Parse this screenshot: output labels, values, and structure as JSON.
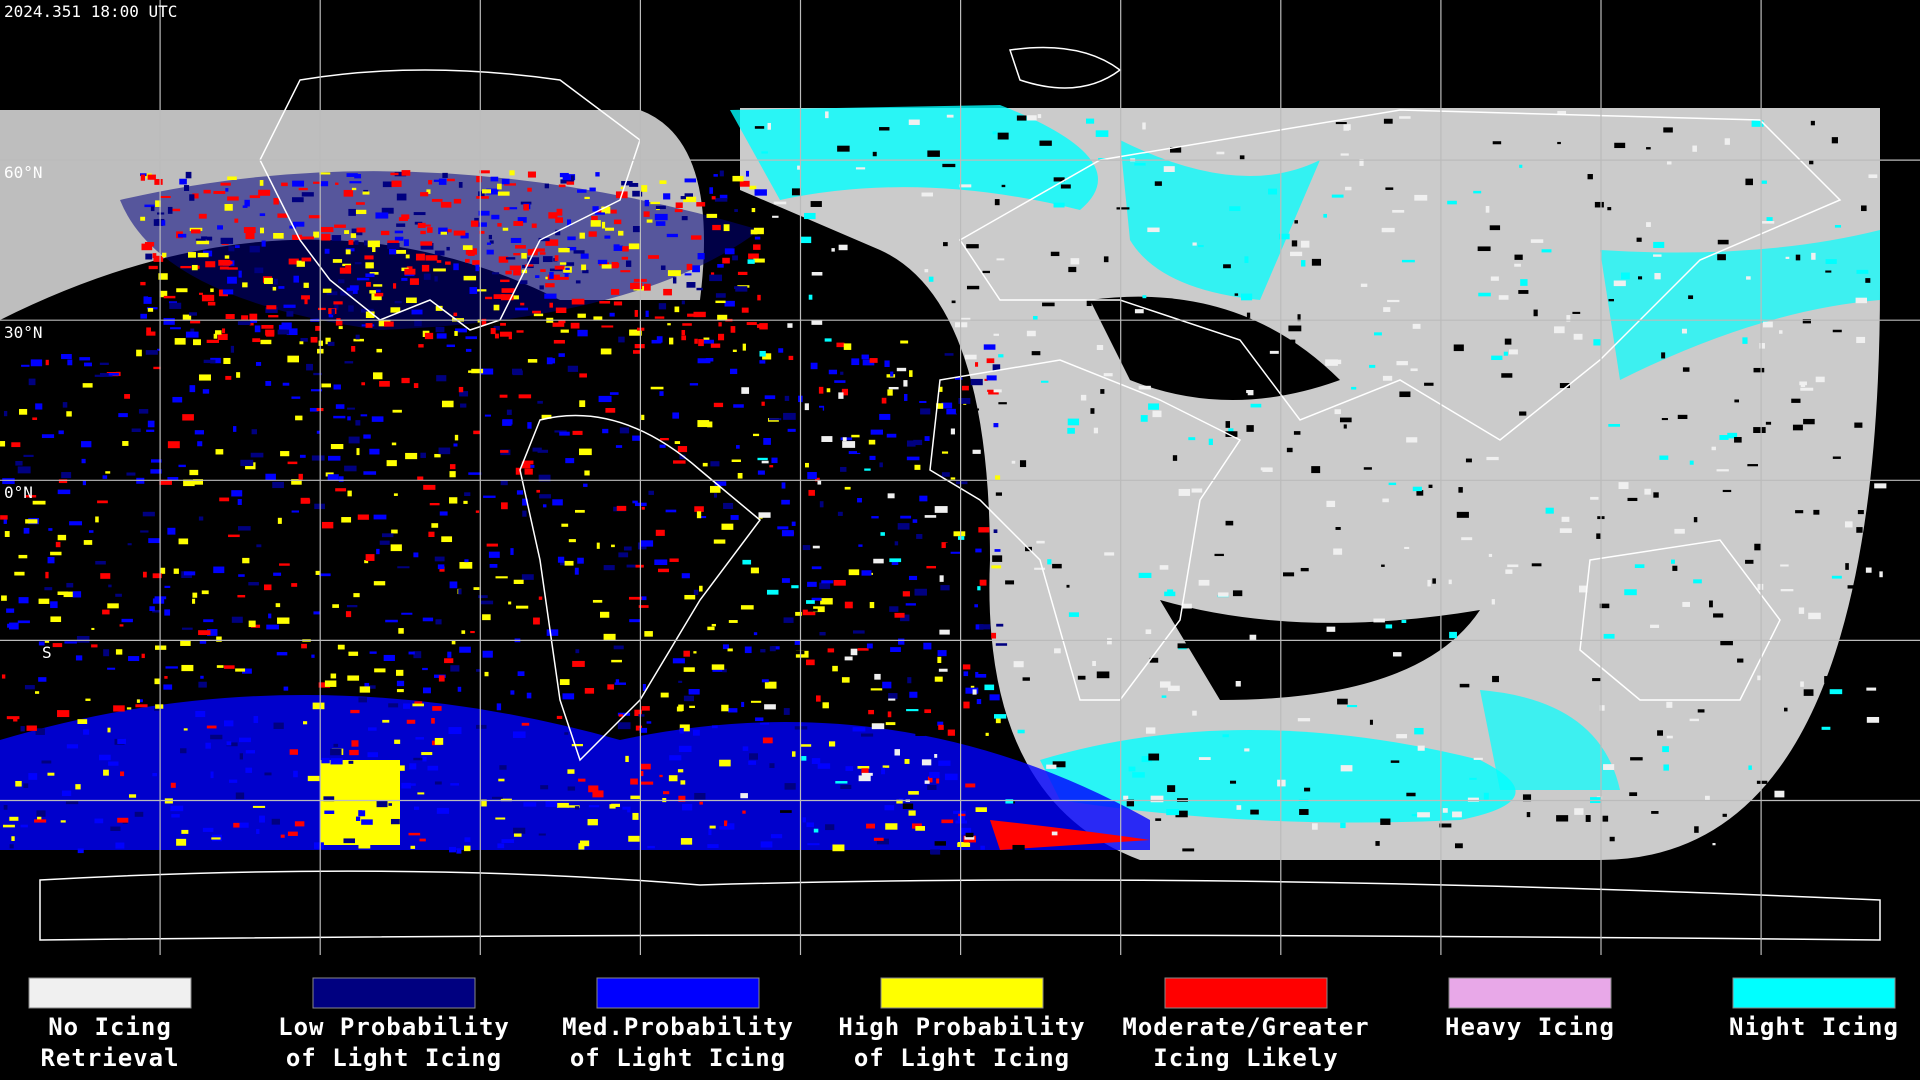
{
  "header": {
    "title": "2024.351 18:00 UTC"
  },
  "map": {
    "lat_labels": [
      "60°N",
      "30°N",
      "0°N",
      "S"
    ]
  },
  "legend": {
    "items": [
      {
        "color": "#f0f0f0",
        "lines": [
          "No Icing",
          "Retrieval"
        ]
      },
      {
        "color": "#000080",
        "lines": [
          "Low Probability",
          "of Light Icing"
        ]
      },
      {
        "color": "#0000ff",
        "lines": [
          "Med.Probability",
          "of Light Icing"
        ]
      },
      {
        "color": "#ffff00",
        "lines": [
          "High Probability",
          "of Light Icing"
        ]
      },
      {
        "color": "#ff0000",
        "lines": [
          "Moderate/Greater",
          "Icing Likely"
        ]
      },
      {
        "color": "#e8a8e8",
        "lines": [
          "Heavy Icing"
        ]
      },
      {
        "color": "#00ffff",
        "lines": [
          "Night Icing"
        ]
      }
    ]
  }
}
